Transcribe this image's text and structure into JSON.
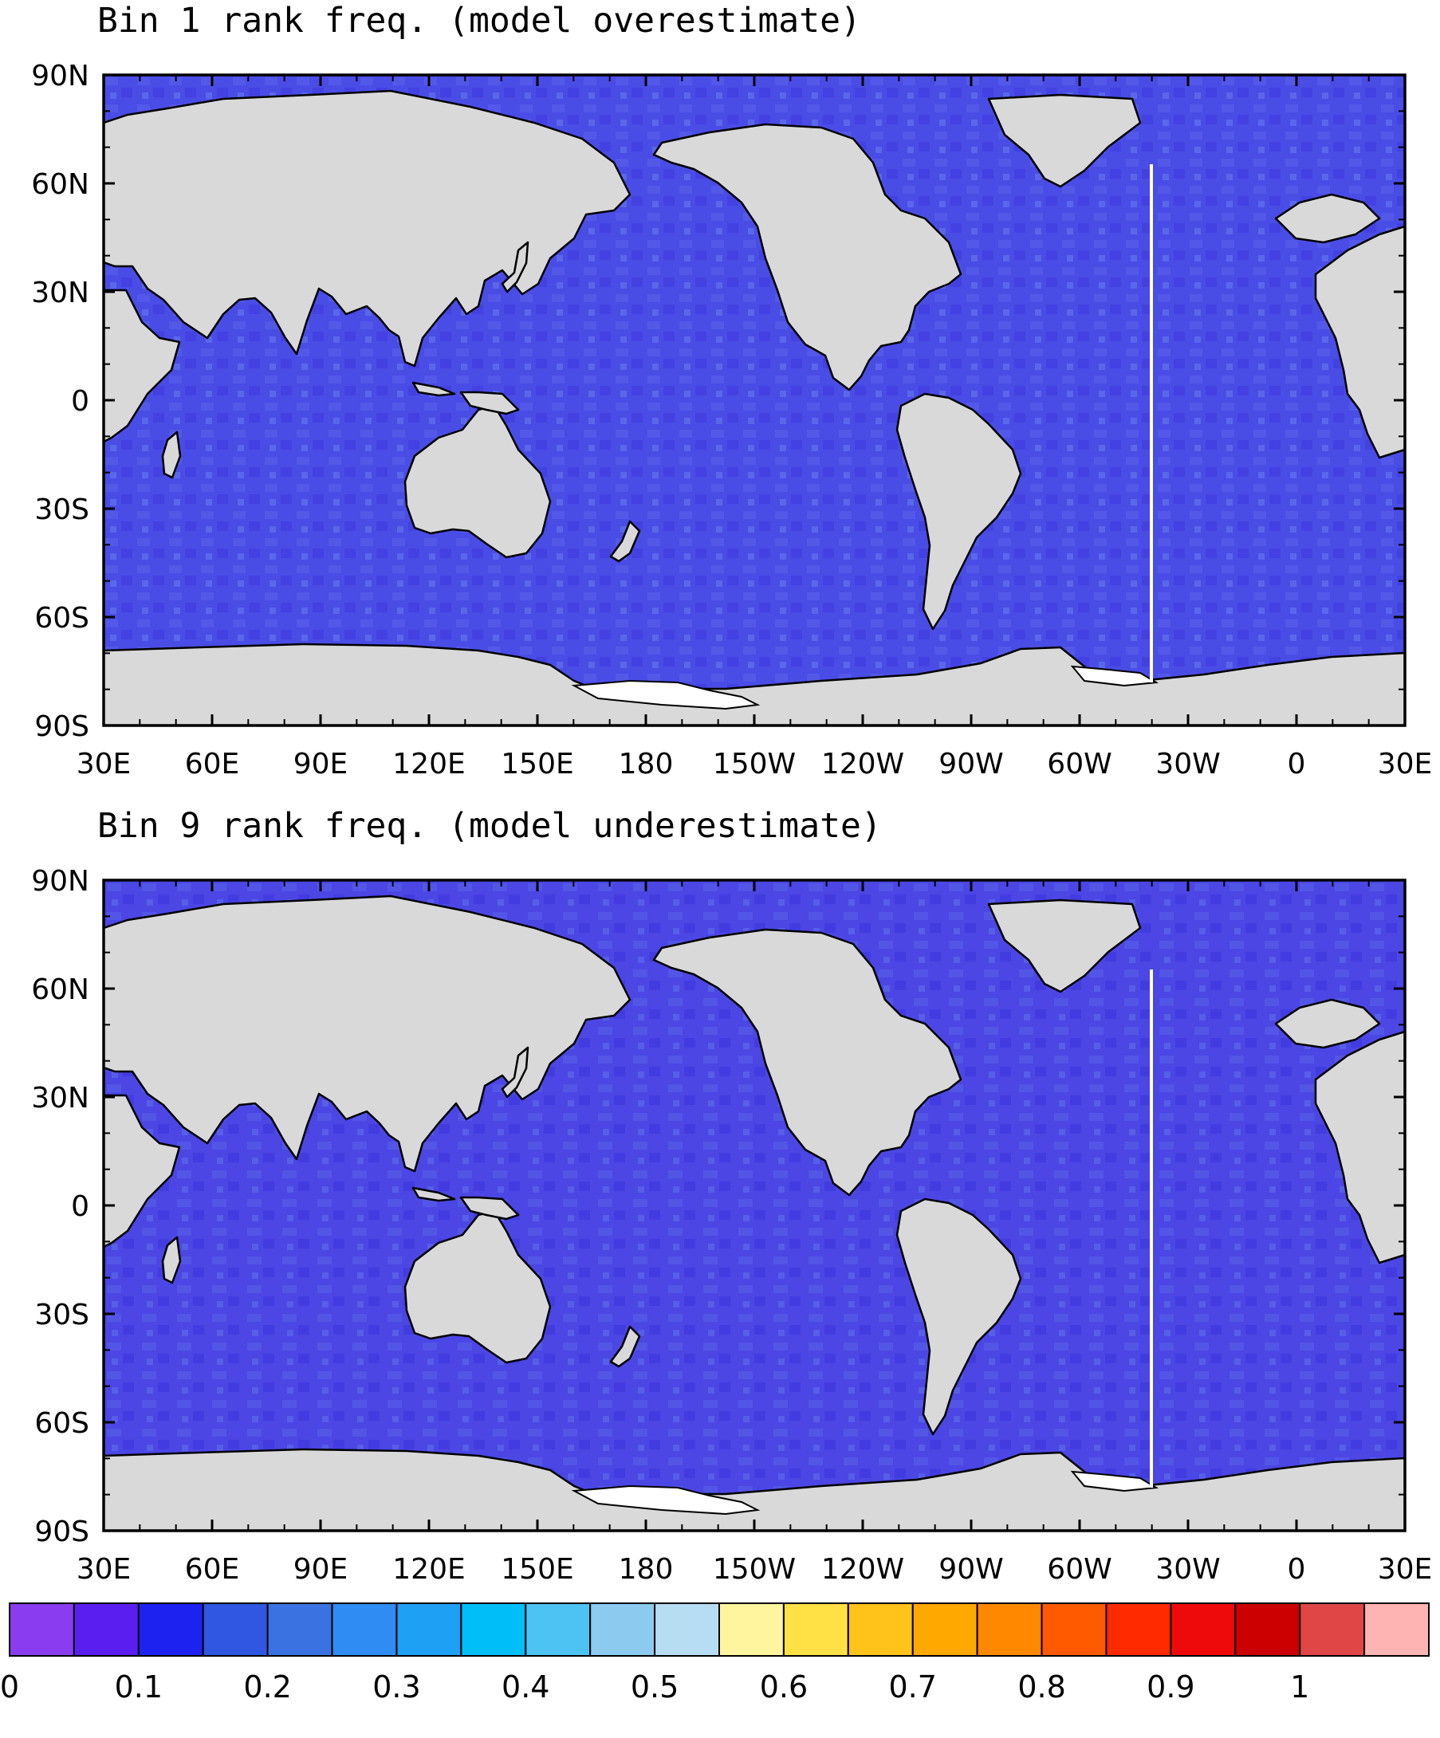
{
  "panels": [
    {
      "title": "Bin 1 rank freq. (model overestimate)",
      "lat_ticks": [
        "90N",
        "60N",
        "30N",
        "0",
        "30S",
        "60S",
        "90S"
      ],
      "lon_ticks": [
        "30E",
        "60E",
        "90E",
        "120E",
        "150E",
        "180",
        "150W",
        "120W",
        "90W",
        "60W",
        "30W",
        "0",
        "30E"
      ],
      "dominant_value": 0.12
    },
    {
      "title": "Bin 9 rank freq. (model underestimate)",
      "lat_ticks": [
        "90N",
        "60N",
        "30N",
        "0",
        "30S",
        "60S",
        "90S"
      ],
      "lon_ticks": [
        "30E",
        "60E",
        "90E",
        "120E",
        "150E",
        "180",
        "150W",
        "120W",
        "90W",
        "60W",
        "30W",
        "0",
        "30E"
      ],
      "dominant_value": 0.11
    }
  ],
  "colorbar": {
    "labels": [
      "0",
      "0.1",
      "0.2",
      "0.3",
      "0.4",
      "0.5",
      "0.6",
      "0.7",
      "0.8",
      "0.9",
      "1"
    ],
    "colors": [
      "#8a3cf0",
      "#5a1ff0",
      "#1e22f0",
      "#2f57e2",
      "#3b72e2",
      "#2f8cf2",
      "#1ea0f4",
      "#00bff8",
      "#4cc3f2",
      "#8ccbef",
      "#b6ddf2",
      "#fff59e",
      "#ffe146",
      "#ffc31a",
      "#ffa800",
      "#ff8800",
      "#ff5a00",
      "#ff2a00",
      "#ee0a0a",
      "#cc0000",
      "#e04646",
      "#ffb4b4"
    ]
  },
  "colors": {
    "land": "#d9d9d9",
    "ocean_base": "#4a4ce6",
    "ice_shelf": "#ffffff"
  }
}
